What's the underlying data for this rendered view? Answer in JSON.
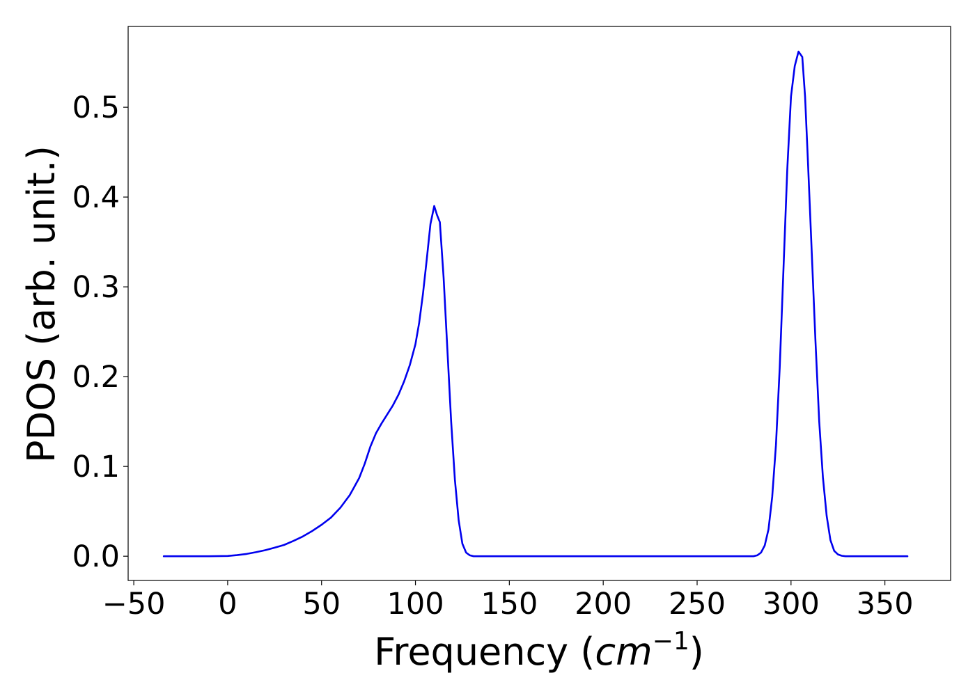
{
  "chart_data": {
    "type": "line",
    "title": "",
    "xlabel": {
      "prefix": "Frequency (",
      "unit_base": "cm",
      "unit_exponent": "−1",
      "suffix": ")"
    },
    "ylabel": "PDOS (arb. unit.)",
    "xlim": [
      -53,
      385
    ],
    "ylim": [
      -0.027,
      0.59
    ],
    "xticks": [
      {
        "value": -50,
        "label": "−50"
      },
      {
        "value": 0,
        "label": "0"
      },
      {
        "value": 50,
        "label": "50"
      },
      {
        "value": 100,
        "label": "100"
      },
      {
        "value": 150,
        "label": "150"
      },
      {
        "value": 200,
        "label": "200"
      },
      {
        "value": 250,
        "label": "250"
      },
      {
        "value": 300,
        "label": "300"
      },
      {
        "value": 350,
        "label": "350"
      }
    ],
    "yticks": [
      {
        "value": 0.0,
        "label": "0.0"
      },
      {
        "value": 0.1,
        "label": "0.1"
      },
      {
        "value": 0.2,
        "label": "0.2"
      },
      {
        "value": 0.3,
        "label": "0.3"
      },
      {
        "value": 0.4,
        "label": "0.4"
      },
      {
        "value": 0.5,
        "label": "0.5"
      }
    ],
    "grid": false,
    "legend": false,
    "series": [
      {
        "color": "#0000ee",
        "x": [
          -34,
          -20,
          -10,
          0,
          5,
          10,
          15,
          20,
          25,
          30,
          35,
          40,
          45,
          50,
          55,
          60,
          65,
          70,
          73,
          76,
          79,
          82,
          85,
          88,
          91,
          94,
          97,
          100,
          102,
          104,
          106,
          108,
          110,
          111.5,
          113,
          115,
          117,
          119,
          121,
          123,
          125,
          127,
          129,
          131,
          133,
          135,
          140,
          150,
          200,
          250,
          275,
          280,
          282,
          284,
          286,
          288,
          290,
          292,
          294,
          296,
          298,
          300,
          302,
          304,
          306,
          307.5,
          309,
          311,
          313,
          315,
          317,
          319,
          321,
          323,
          325,
          327,
          329,
          331,
          333,
          335,
          337,
          340,
          350,
          362
        ],
        "y": [
          0,
          0,
          0,
          0.0003,
          0.0012,
          0.0025,
          0.0045,
          0.0067,
          0.0095,
          0.0125,
          0.017,
          0.022,
          0.028,
          0.035,
          0.043,
          0.054,
          0.068,
          0.087,
          0.103,
          0.122,
          0.137,
          0.148,
          0.158,
          0.168,
          0.18,
          0.195,
          0.213,
          0.236,
          0.26,
          0.292,
          0.33,
          0.37,
          0.39,
          0.38,
          0.372,
          0.31,
          0.23,
          0.15,
          0.085,
          0.04,
          0.014,
          0.004,
          0.001,
          0,
          0,
          0,
          0,
          0,
          0,
          0,
          0,
          0,
          0.001,
          0.004,
          0.012,
          0.03,
          0.066,
          0.124,
          0.21,
          0.32,
          0.43,
          0.512,
          0.546,
          0.562,
          0.556,
          0.512,
          0.44,
          0.34,
          0.24,
          0.15,
          0.088,
          0.045,
          0.018,
          0.006,
          0.002,
          0.0005,
          0,
          0,
          0,
          0,
          0,
          0,
          0,
          0
        ]
      }
    ]
  }
}
